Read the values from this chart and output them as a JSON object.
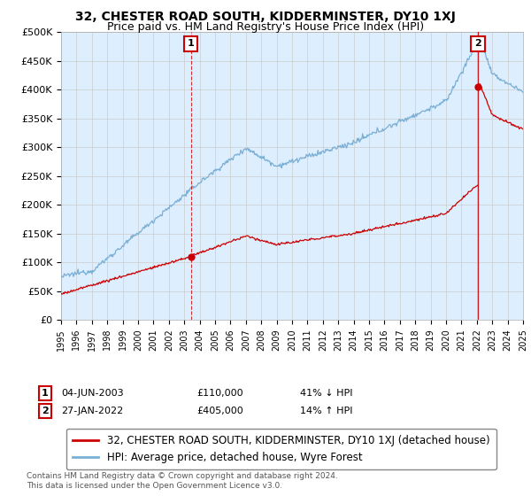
{
  "title": "32, CHESTER ROAD SOUTH, KIDDERMINSTER, DY10 1XJ",
  "subtitle": "Price paid vs. HM Land Registry's House Price Index (HPI)",
  "legend_label_red": "32, CHESTER ROAD SOUTH, KIDDERMINSTER, DY10 1XJ (detached house)",
  "legend_label_blue": "HPI: Average price, detached house, Wyre Forest",
  "annotation1_date": "04-JUN-2003",
  "annotation1_price": "£110,000",
  "annotation1_pct": "41% ↓ HPI",
  "annotation2_date": "27-JAN-2022",
  "annotation2_price": "£405,000",
  "annotation2_pct": "14% ↑ HPI",
  "footnote": "Contains HM Land Registry data © Crown copyright and database right 2024.\nThis data is licensed under the Open Government Licence v3.0.",
  "ylim": [
    0,
    500000
  ],
  "yticks": [
    0,
    50000,
    100000,
    150000,
    200000,
    250000,
    300000,
    350000,
    400000,
    450000,
    500000
  ],
  "ytick_labels": [
    "£0",
    "£50K",
    "£100K",
    "£150K",
    "£200K",
    "£250K",
    "£300K",
    "£350K",
    "£400K",
    "£450K",
    "£500K"
  ],
  "red_color": "#cc0000",
  "blue_color": "#7aafd4",
  "vline_color": "#cc0000",
  "grid_color": "#cccccc",
  "background_color": "#ffffff",
  "plot_bg_color": "#ddeeff",
  "sale1_year": 2003.42,
  "sale1_price": 110000,
  "sale2_year": 2022.07,
  "sale2_price": 405000,
  "title_fontsize": 10,
  "subtitle_fontsize": 9,
  "axis_fontsize": 8,
  "legend_fontsize": 8.5
}
